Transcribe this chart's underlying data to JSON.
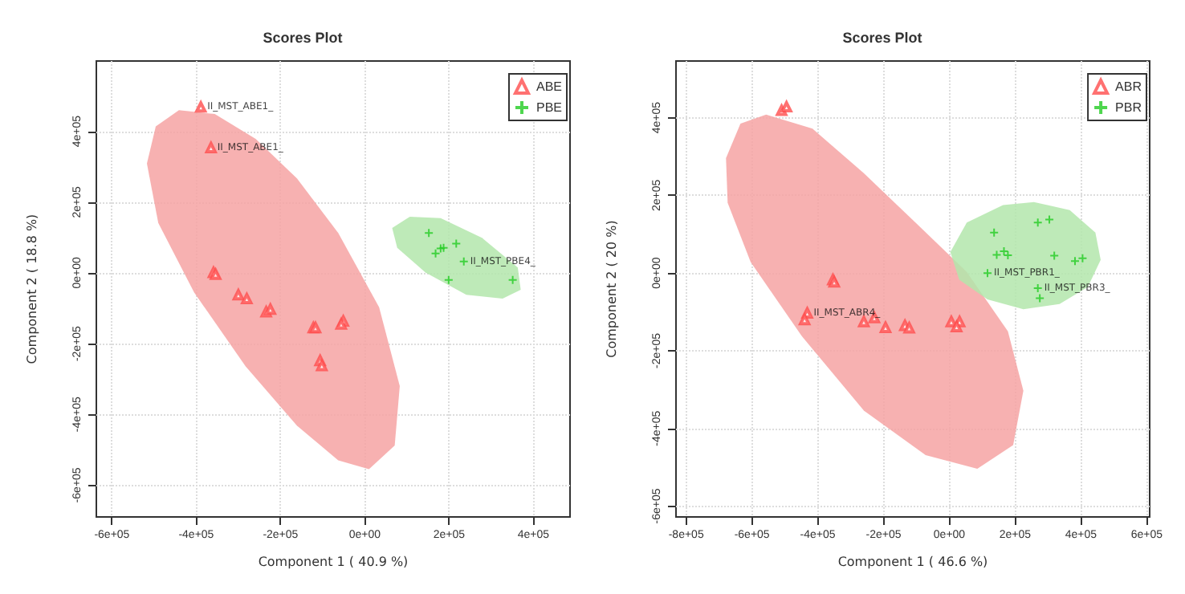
{
  "chart_data": [
    {
      "type": "scatter",
      "title": "Scores Plot",
      "xlabel": "Component 1 ( 40.9 %)",
      "ylabel": "Component 2 ( 18.8 %)",
      "xlim": [
        -637000,
        487000
      ],
      "ylim": [
        -690000,
        599000
      ],
      "xticks": [
        {
          "value": -600000,
          "label": "-6e+05"
        },
        {
          "value": -400000,
          "label": "-4e+05"
        },
        {
          "value": -200000,
          "label": "-2e+05"
        },
        {
          "value": 0,
          "label": "0e+00"
        },
        {
          "value": 200000,
          "label": "2e+05"
        },
        {
          "value": 400000,
          "label": "4e+05"
        }
      ],
      "yticks": [
        {
          "value": -600000,
          "label": "-6e+05"
        },
        {
          "value": -400000,
          "label": "-4e+05"
        },
        {
          "value": -200000,
          "label": "-2e+05"
        },
        {
          "value": 0,
          "label": "0e+00"
        },
        {
          "value": 200000,
          "label": "2e+05"
        },
        {
          "value": 400000,
          "label": "4e+05"
        }
      ],
      "grid": true,
      "legend": "top right",
      "series": [
        {
          "type": "area",
          "color": "#f6a3a3",
          "x": [
            -441000,
            -356000,
            -259000,
            -161000,
            -63000,
            34000,
            83000,
            71000,
            10000,
            -63000,
            -161000,
            -283000,
            -405000,
            -490000,
            -517000,
            -496000
          ],
          "values": [
            460000,
            449000,
            379000,
            267000,
            113000,
            -97000,
            -320000,
            -488000,
            -555000,
            -530000,
            -432000,
            -264000,
            -55000,
            141000,
            309000,
            414000
          ]
        },
        {
          "type": "area",
          "color": "#b3e6ab",
          "x": [
            65000,
            107000,
            180000,
            278000,
            363000,
            370000,
            327000,
            241000,
            144000,
            77000
          ],
          "values": [
            127000,
            159000,
            155000,
            99000,
            15000,
            -48000,
            -73000,
            -62000,
            1000,
            71000
          ]
        },
        {
          "name": "ABE",
          "type": "scatter",
          "marker": "triangle",
          "color": "#ff4d4d",
          "x": [
            -389000,
            -365000,
            -359000,
            -354000,
            -300000,
            -280000,
            -234000,
            -224000,
            -122000,
            -117000,
            -51000,
            -56000,
            -106000,
            -102000
          ],
          "values": [
            469000,
            354000,
            1000,
            -4000,
            -62000,
            -73000,
            -110000,
            -103000,
            -155000,
            -155000,
            -136000,
            -145000,
            -248000,
            -262000
          ]
        },
        {
          "name": "PBE",
          "type": "scatter",
          "marker": "cross",
          "color": "#22cc22",
          "x": [
            152000,
            180000,
            168000,
            187000,
            217000,
            235000,
            199000,
            351000
          ],
          "values": [
            113000,
            69000,
            55000,
            71000,
            83000,
            32000,
            -20000,
            -20000
          ]
        }
      ],
      "annotations": [
        {
          "text": "II_MST_ABE1_",
          "x": -389000,
          "y": 469000
        },
        {
          "text": "II_MST_ABE1_",
          "x": -365000,
          "y": 354000
        },
        {
          "text": "II_MST_PBE4_",
          "x": 235000,
          "y": 32000
        }
      ]
    },
    {
      "type": "scatter",
      "title": "Scores Plot",
      "xlabel": "Component 1 ( 46.6 %)",
      "ylabel": "Component 2 ( 20 %)",
      "xlim": [
        -831000,
        609000
      ],
      "ylim": [
        -628000,
        546000
      ],
      "xticks": [
        {
          "value": -800000,
          "label": "-8e+05"
        },
        {
          "value": -600000,
          "label": "-6e+05"
        },
        {
          "value": -400000,
          "label": "-4e+05"
        },
        {
          "value": -200000,
          "label": "-2e+05"
        },
        {
          "value": 0,
          "label": "0e+00"
        },
        {
          "value": 200000,
          "label": "2e+05"
        },
        {
          "value": 400000,
          "label": "4e+05"
        },
        {
          "value": 600000,
          "label": "6e+05"
        }
      ],
      "yticks": [
        {
          "value": -600000,
          "label": "-6e+05"
        },
        {
          "value": -400000,
          "label": "-4e+05"
        },
        {
          "value": -200000,
          "label": "-2e+05"
        },
        {
          "value": 0,
          "label": "0e+00"
        },
        {
          "value": 200000,
          "label": "2e+05"
        },
        {
          "value": 400000,
          "label": "4e+05"
        }
      ],
      "grid": true,
      "legend": "top right",
      "series": [
        {
          "type": "area",
          "color": "#f6a3a3",
          "x": [
            -557000,
            -416000,
            -260000,
            -103000,
            53000,
            178000,
            225000,
            194000,
            85000,
            -72000,
            -260000,
            -448000,
            -604000,
            -674000,
            -679000,
            -635000
          ],
          "values": [
            408000,
            372000,
            257000,
            130000,
            3000,
            -150000,
            -303000,
            -443000,
            -504000,
            -469000,
            -354000,
            -163000,
            28000,
            181000,
            296000,
            385000
          ]
        },
        {
          "type": "area",
          "color": "#b3e6ab",
          "x": [
            3000,
            53000,
            163000,
            257000,
            366000,
            444000,
            460000,
            421000,
            335000,
            225000,
            116000,
            30000
          ],
          "values": [
            54000,
            130000,
            175000,
            183000,
            162000,
            104000,
            34000,
            -36000,
            -80000,
            -93000,
            -68000,
            -17000
          ]
        },
        {
          "name": "ABR",
          "type": "scatter",
          "marker": "triangle",
          "color": "#ff4d4d",
          "x": [
            -510000,
            -495000,
            -354000,
            -350000,
            -432000,
            -440000,
            -260000,
            -228000,
            -194000,
            -135000,
            -122000,
            6000,
            31000,
            22000
          ],
          "values": [
            419000,
            428000,
            -17000,
            -23000,
            -103000,
            -120000,
            -125000,
            -115000,
            -140000,
            -135000,
            -141000,
            -125000,
            -125000,
            -138000
          ]
        },
        {
          "name": "PBR",
          "type": "scatter",
          "marker": "cross",
          "color": "#22cc22",
          "x": [
            269000,
            304000,
            136000,
            166000,
            144000,
            178000,
            319000,
            382000,
            405000,
            116000,
            269000,
            275000
          ],
          "values": [
            130000,
            138000,
            104000,
            56000,
            47000,
            46000,
            45000,
            31000,
            38000,
            0,
            -39000,
            -65000
          ]
        }
      ],
      "annotations": [
        {
          "text": "II_MST_ABR4_",
          "x": -432000,
          "y": -103000
        },
        {
          "text": "II_MST_PBR1_",
          "x": 116000,
          "y": 0
        },
        {
          "text": "II_MST_PBR3_",
          "x": 269000,
          "y": -39000
        }
      ]
    }
  ]
}
